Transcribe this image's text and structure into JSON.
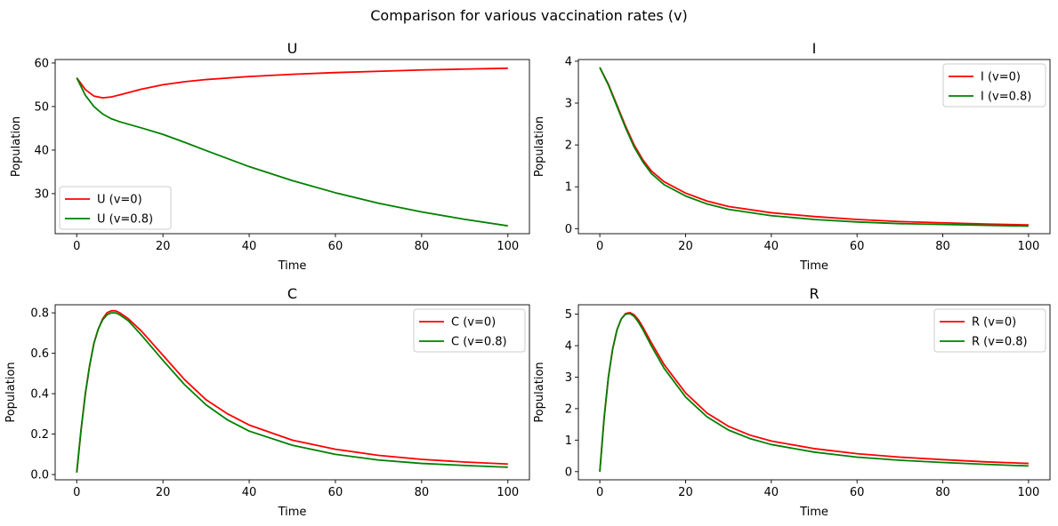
{
  "figure": {
    "title": "Comparison for various vaccination rates (v)"
  },
  "chart_data": [
    {
      "type": "line",
      "title": "U",
      "xlabel": "Time",
      "ylabel": "Population",
      "xlim": [
        -5,
        105
      ],
      "ylim": [
        20.8,
        60.8
      ],
      "xticks": [
        0,
        20,
        40,
        60,
        80,
        100
      ],
      "yticks": [
        30,
        40,
        50,
        60
      ],
      "legend": "lower-left",
      "grid": false,
      "series": [
        {
          "name": "U (v=0)",
          "color": "#ff0000",
          "x": [
            0,
            2,
            4,
            6,
            8,
            10,
            15,
            20,
            25,
            30,
            40,
            50,
            60,
            70,
            80,
            90,
            100
          ],
          "y": [
            56.6,
            53.9,
            52.4,
            52.0,
            52.2,
            52.7,
            54.0,
            55.0,
            55.7,
            56.2,
            56.9,
            57.4,
            57.8,
            58.1,
            58.4,
            58.6,
            58.8
          ]
        },
        {
          "name": "U (v=0.8)",
          "color": "#008000",
          "x": [
            0,
            2,
            4,
            6,
            8,
            10,
            15,
            20,
            25,
            30,
            40,
            50,
            60,
            70,
            80,
            90,
            100
          ],
          "y": [
            56.6,
            52.6,
            50.0,
            48.3,
            47.2,
            46.5,
            45.1,
            43.6,
            41.8,
            39.9,
            36.2,
            33.0,
            30.2,
            27.8,
            25.8,
            24.1,
            22.6
          ]
        }
      ]
    },
    {
      "type": "line",
      "title": "I",
      "xlabel": "Time",
      "ylabel": "Population",
      "xlim": [
        -5,
        105
      ],
      "ylim": [
        -0.12,
        4.04
      ],
      "xticks": [
        0,
        20,
        40,
        60,
        80,
        100
      ],
      "yticks": [
        0,
        1,
        2,
        3,
        4
      ],
      "legend": "upper-right",
      "grid": false,
      "series": [
        {
          "name": "I (v=0)",
          "color": "#ff0000",
          "x": [
            0,
            2,
            4,
            6,
            8,
            10,
            12,
            15,
            20,
            25,
            30,
            40,
            50,
            60,
            70,
            80,
            90,
            100
          ],
          "y": [
            3.85,
            3.45,
            2.95,
            2.45,
            2.0,
            1.65,
            1.38,
            1.12,
            0.85,
            0.66,
            0.53,
            0.38,
            0.29,
            0.22,
            0.17,
            0.14,
            0.11,
            0.09
          ]
        },
        {
          "name": "I (v=0.8)",
          "color": "#008000",
          "x": [
            0,
            2,
            4,
            6,
            8,
            10,
            12,
            15,
            20,
            25,
            30,
            40,
            50,
            60,
            70,
            80,
            90,
            100
          ],
          "y": [
            3.85,
            3.43,
            2.92,
            2.41,
            1.95,
            1.6,
            1.32,
            1.05,
            0.78,
            0.59,
            0.46,
            0.31,
            0.22,
            0.16,
            0.12,
            0.1,
            0.08,
            0.06
          ]
        }
      ]
    },
    {
      "type": "line",
      "title": "C",
      "xlabel": "Time",
      "ylabel": "Population",
      "xlim": [
        -5,
        105
      ],
      "ylim": [
        -0.026,
        0.84
      ],
      "xticks": [
        0,
        20,
        40,
        60,
        80,
        100
      ],
      "yticks": [
        0.0,
        0.2,
        0.4,
        0.6,
        0.8
      ],
      "yticklabels": [
        "0.0",
        "0.2",
        "0.4",
        "0.6",
        "0.8"
      ],
      "legend": "upper-right",
      "grid": false,
      "series": [
        {
          "name": "C (v=0)",
          "color": "#ff0000",
          "x": [
            0,
            1,
            2,
            3,
            4,
            5,
            6,
            7,
            8,
            9,
            10,
            12,
            15,
            20,
            25,
            30,
            35,
            40,
            50,
            60,
            70,
            80,
            90,
            100
          ],
          "y": [
            0.01,
            0.22,
            0.4,
            0.54,
            0.65,
            0.72,
            0.77,
            0.8,
            0.81,
            0.81,
            0.8,
            0.77,
            0.71,
            0.59,
            0.47,
            0.37,
            0.3,
            0.245,
            0.17,
            0.125,
            0.095,
            0.075,
            0.062,
            0.052
          ]
        },
        {
          "name": "C (v=0.8)",
          "color": "#008000",
          "x": [
            0,
            1,
            2,
            3,
            4,
            5,
            6,
            7,
            8,
            9,
            10,
            12,
            15,
            20,
            25,
            30,
            35,
            40,
            50,
            60,
            70,
            80,
            90,
            100
          ],
          "y": [
            0.01,
            0.22,
            0.4,
            0.54,
            0.65,
            0.72,
            0.765,
            0.79,
            0.8,
            0.8,
            0.79,
            0.76,
            0.69,
            0.565,
            0.445,
            0.345,
            0.27,
            0.215,
            0.145,
            0.1,
            0.072,
            0.055,
            0.045,
            0.036
          ]
        }
      ]
    },
    {
      "type": "line",
      "title": "R",
      "xlabel": "Time",
      "ylabel": "Population",
      "xlim": [
        -5,
        105
      ],
      "ylim": [
        -0.26,
        5.3
      ],
      "xticks": [
        0,
        20,
        40,
        60,
        80,
        100
      ],
      "yticks": [
        0,
        1,
        2,
        3,
        4,
        5
      ],
      "legend": "upper-right",
      "grid": false,
      "series": [
        {
          "name": "R (v=0)",
          "color": "#ff0000",
          "x": [
            0,
            1,
            2,
            3,
            4,
            5,
            6,
            7,
            8,
            9,
            10,
            12,
            15,
            20,
            25,
            30,
            35,
            40,
            50,
            60,
            70,
            80,
            90,
            100
          ],
          "y": [
            0.0,
            1.7,
            3.0,
            3.9,
            4.5,
            4.85,
            5.02,
            5.05,
            4.98,
            4.82,
            4.6,
            4.1,
            3.4,
            2.5,
            1.86,
            1.44,
            1.16,
            0.97,
            0.73,
            0.57,
            0.46,
            0.38,
            0.31,
            0.26
          ]
        },
        {
          "name": "R (v=0.8)",
          "color": "#008000",
          "x": [
            0,
            1,
            2,
            3,
            4,
            5,
            6,
            7,
            8,
            9,
            10,
            12,
            15,
            20,
            25,
            30,
            35,
            40,
            50,
            60,
            70,
            80,
            90,
            100
          ],
          "y": [
            0.0,
            1.7,
            3.0,
            3.9,
            4.5,
            4.85,
            5.0,
            5.02,
            4.93,
            4.75,
            4.52,
            4.0,
            3.28,
            2.37,
            1.74,
            1.32,
            1.05,
            0.86,
            0.62,
            0.46,
            0.36,
            0.29,
            0.23,
            0.18
          ]
        }
      ]
    }
  ]
}
